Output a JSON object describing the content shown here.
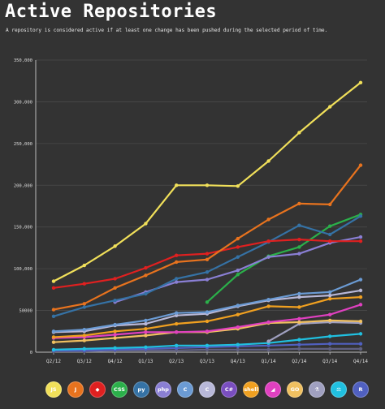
{
  "title": "Active Repositories",
  "subtitle": "A repository is considered active if at least one change has been pushed during the selected period of time.",
  "chart_data": {
    "type": "line",
    "title": "Active Repositories",
    "subtitle": "A repository is considered active if at least one change has been pushed during the selected period of time.",
    "xlabel": "",
    "ylabel": "",
    "categories": [
      "Q2/12",
      "Q3/12",
      "Q4/12",
      "Q1/13",
      "Q2/13",
      "Q3/13",
      "Q4/13",
      "Q1/14",
      "Q2/14",
      "Q3/14",
      "Q4/14"
    ],
    "ylim": [
      0,
      350000
    ],
    "yticks": [
      0,
      50000,
      100000,
      150000,
      200000,
      250000,
      300000,
      350000
    ],
    "ytick_labels": [
      "0",
      "50000",
      "100,000",
      "150,000",
      "200,000",
      "250,000",
      "300,000",
      "350,000"
    ],
    "grid": true,
    "series": [
      {
        "color": "#f1e05a",
        "values": [
          85000,
          104000,
          127000,
          154000,
          200000,
          200000,
          199000,
          229000,
          263000,
          294000,
          323000
        ]
      },
      {
        "color": "#e8731e",
        "values": [
          51000,
          58000,
          77000,
          92000,
          108000,
          111000,
          136000,
          159000,
          178000,
          177000,
          224000
        ]
      },
      {
        "color": "#e02020",
        "values": [
          77000,
          82000,
          88000,
          101000,
          116000,
          118000,
          126000,
          133000,
          135000,
          133000,
          133000
        ]
      },
      {
        "color": "#3572a5",
        "values": [
          43000,
          54000,
          62000,
          70000,
          88000,
          96000,
          114000,
          132000,
          152000,
          141000,
          163000
        ]
      },
      {
        "color": "#8a7fd4",
        "values": [
          null,
          null,
          60000,
          72000,
          84000,
          87000,
          98000,
          114000,
          118000,
          131000,
          138000
        ]
      },
      {
        "color": "#2bb04a",
        "values": [
          null,
          null,
          null,
          null,
          null,
          60000,
          93000,
          115000,
          126000,
          151000,
          165000
        ]
      },
      {
        "color": "#6b9bd4",
        "values": [
          25000,
          27000,
          33000,
          38000,
          47000,
          48000,
          56000,
          63000,
          70000,
          72000,
          87000
        ]
      },
      {
        "color": "#b8b8d8",
        "values": [
          24000,
          25000,
          32000,
          34000,
          44000,
          46000,
          55000,
          62000,
          66000,
          68000,
          74000
        ]
      },
      {
        "color": "#f0a020",
        "values": [
          18000,
          20000,
          25000,
          28000,
          34000,
          37000,
          45000,
          55000,
          54000,
          64000,
          66000
        ]
      },
      {
        "color": "#e040c0",
        "values": [
          17000,
          18000,
          21000,
          24000,
          24000,
          25000,
          30000,
          36000,
          40000,
          45000,
          57000
        ]
      },
      {
        "color": "#f0c060",
        "values": [
          12000,
          14000,
          17000,
          20000,
          24000,
          24000,
          28000,
          35000,
          36000,
          38000,
          37000
        ]
      },
      {
        "color": "#a0a0c0",
        "values": [
          null,
          null,
          null,
          null,
          null,
          null,
          null,
          13000,
          34000,
          36000,
          35000
        ]
      },
      {
        "color": "#20c0e0",
        "values": [
          3000,
          4000,
          5000,
          6000,
          8000,
          8000,
          9000,
          11000,
          15000,
          19000,
          22000
        ]
      },
      {
        "color": "#5060c0",
        "values": [
          2000,
          2000,
          3000,
          4000,
          5000,
          6000,
          7000,
          8000,
          9000,
          10000,
          10000
        ]
      },
      {
        "color": "#606080",
        "values": [
          1000,
          1000,
          2000,
          2000,
          2000,
          3000,
          3000,
          3000,
          4000,
          4000,
          4000
        ]
      }
    ]
  },
  "legend": [
    {
      "label": "JS",
      "color": "#f1e05a",
      "icon": "javascript-icon"
    },
    {
      "label": "J",
      "color": "#e8731e",
      "icon": "java-icon"
    },
    {
      "label": "◆",
      "color": "#e02020",
      "icon": "ruby-icon"
    },
    {
      "label": "CSS",
      "color": "#2bb04a",
      "icon": "css-icon"
    },
    {
      "label": "py",
      "color": "#3572a5",
      "icon": "python-icon"
    },
    {
      "label": "php",
      "color": "#8a7fd4",
      "icon": "php-icon"
    },
    {
      "label": "C",
      "color": "#6b9bd4",
      "icon": "cpp-icon"
    },
    {
      "label": "C",
      "color": "#b8b8d8",
      "icon": "c-icon"
    },
    {
      "label": "C#",
      "color": "#7a4ec0",
      "icon": "csharp-icon"
    },
    {
      "label": "shell",
      "color": "#f0a020",
      "icon": "shell-icon"
    },
    {
      "label": "◢",
      "color": "#e040c0",
      "icon": "objective-c-icon"
    },
    {
      "label": "GO",
      "color": "#f0c060",
      "icon": "go-icon"
    },
    {
      "label": "⚗",
      "color": "#a0a0c0",
      "icon": "r-icon"
    },
    {
      "label": "⚖",
      "color": "#20c0e0",
      "icon": "perl-icon"
    },
    {
      "label": "R",
      "color": "#5060c0",
      "icon": "r-lang-icon"
    }
  ]
}
